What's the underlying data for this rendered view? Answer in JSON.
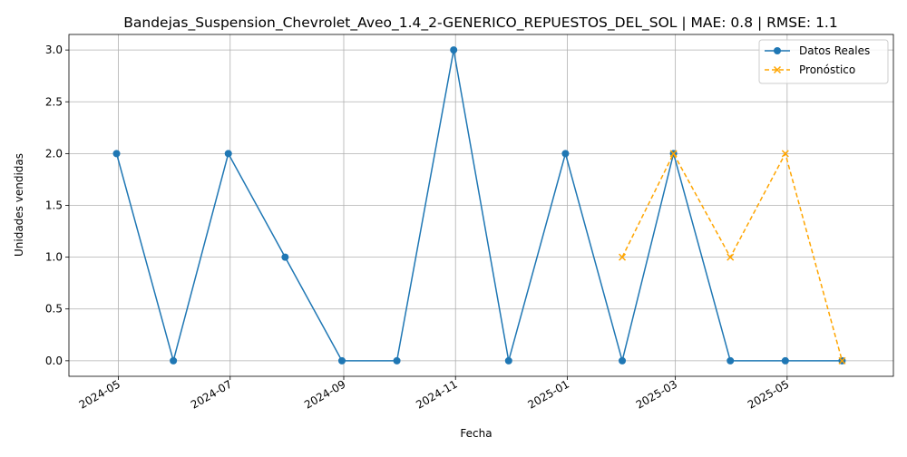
{
  "chart_data": {
    "type": "line",
    "title": "Bandejas_Suspension_Chevrolet_Aveo_1.4_2-GENERICO_REPUESTOS_DEL_SOL | MAE: 0.8 | RMSE: 1.1",
    "xlabel": "Fecha",
    "ylabel": "Unidades vendidas",
    "ylim": [
      -0.15,
      3.15
    ],
    "xlim": [
      "2024-04-04",
      "2025-06-28"
    ],
    "grid": true,
    "legend_position": "top-right",
    "x_ticks": [
      "2024-05",
      "2024-07",
      "2024-09",
      "2024-11",
      "2025-01",
      "2025-03",
      "2025-05"
    ],
    "y_ticks": [
      "0.0",
      "0.5",
      "1.0",
      "1.5",
      "2.0",
      "2.5",
      "3.0"
    ],
    "y_tick_values": [
      0,
      0.5,
      1.0,
      1.5,
      2.0,
      2.5,
      3.0
    ],
    "series": [
      {
        "name": "Datos Reales",
        "color": "#1f77b4",
        "line_style": "solid",
        "marker": "circle",
        "x": [
          "2024-04-30",
          "2024-05-31",
          "2024-06-30",
          "2024-07-31",
          "2024-08-31",
          "2024-09-30",
          "2024-10-31",
          "2024-11-30",
          "2024-12-31",
          "2025-01-31",
          "2025-02-28",
          "2025-03-31",
          "2025-04-30",
          "2025-05-31"
        ],
        "y": [
          2,
          0,
          2,
          1,
          0,
          0,
          3,
          0,
          2,
          0,
          2,
          0,
          0,
          0
        ]
      },
      {
        "name": "Pronóstico",
        "color": "#ffa500",
        "line_style": "dashed",
        "marker": "x",
        "x": [
          "2025-01-31",
          "2025-02-28",
          "2025-03-31",
          "2025-04-30",
          "2025-05-31"
        ],
        "y": [
          1,
          2,
          1,
          2,
          0
        ]
      }
    ]
  }
}
